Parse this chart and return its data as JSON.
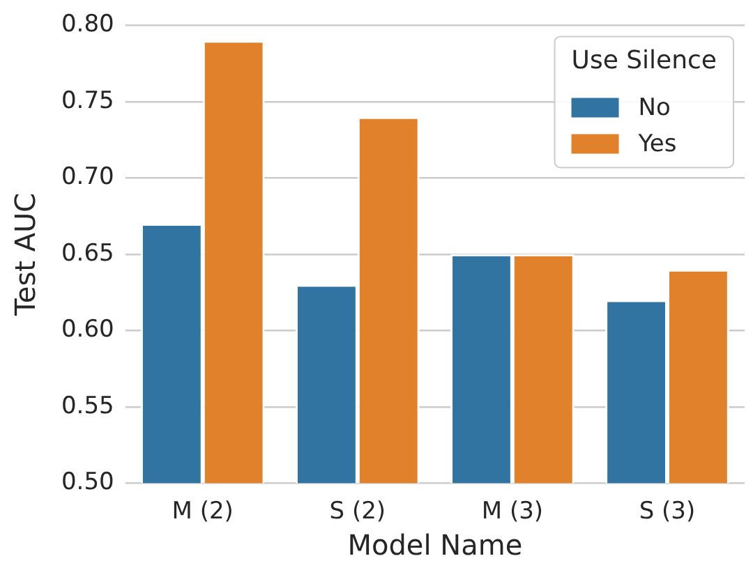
{
  "chart_data": {
    "type": "bar",
    "xlabel": "Model Name",
    "ylabel": "Test AUC",
    "legend_title": "Use Silence",
    "categories": [
      "M (2)",
      "S (2)",
      "M (3)",
      "S (3)"
    ],
    "series": [
      {
        "name": "No",
        "color": "#3274a1",
        "values": [
          0.67,
          0.63,
          0.65,
          0.62
        ]
      },
      {
        "name": "Yes",
        "color": "#e1812c",
        "values": [
          0.79,
          0.74,
          0.65,
          0.64
        ]
      }
    ],
    "ylim": [
      0.5,
      0.8
    ],
    "yticks": [
      {
        "value": 0.5,
        "label": "0.50"
      },
      0.55,
      {
        "value": 0.6,
        "label": "0.60"
      },
      0.65,
      {
        "value": 0.7,
        "label": "0.70"
      },
      0.75,
      {
        "value": 0.8,
        "label": "0.80"
      }
    ],
    "grid": "y",
    "legend": "top right"
  }
}
